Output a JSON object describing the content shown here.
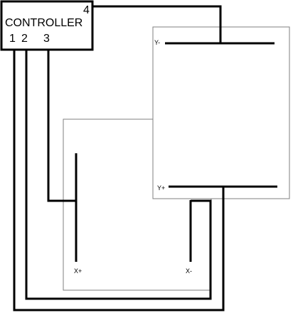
{
  "controller": {
    "title": "CONTROLLER",
    "pin_1": "1",
    "pin_2": "2",
    "pin_3": "3",
    "pin_4": "4"
  },
  "y_panel": {
    "top_label": "Y-",
    "bottom_label": "Y+"
  },
  "x_panel": {
    "left_label": "X+",
    "right_label": "X-"
  },
  "colors": {
    "line": "#000000",
    "panel_outline": "#7f7f7f",
    "background": "#ffffff"
  }
}
